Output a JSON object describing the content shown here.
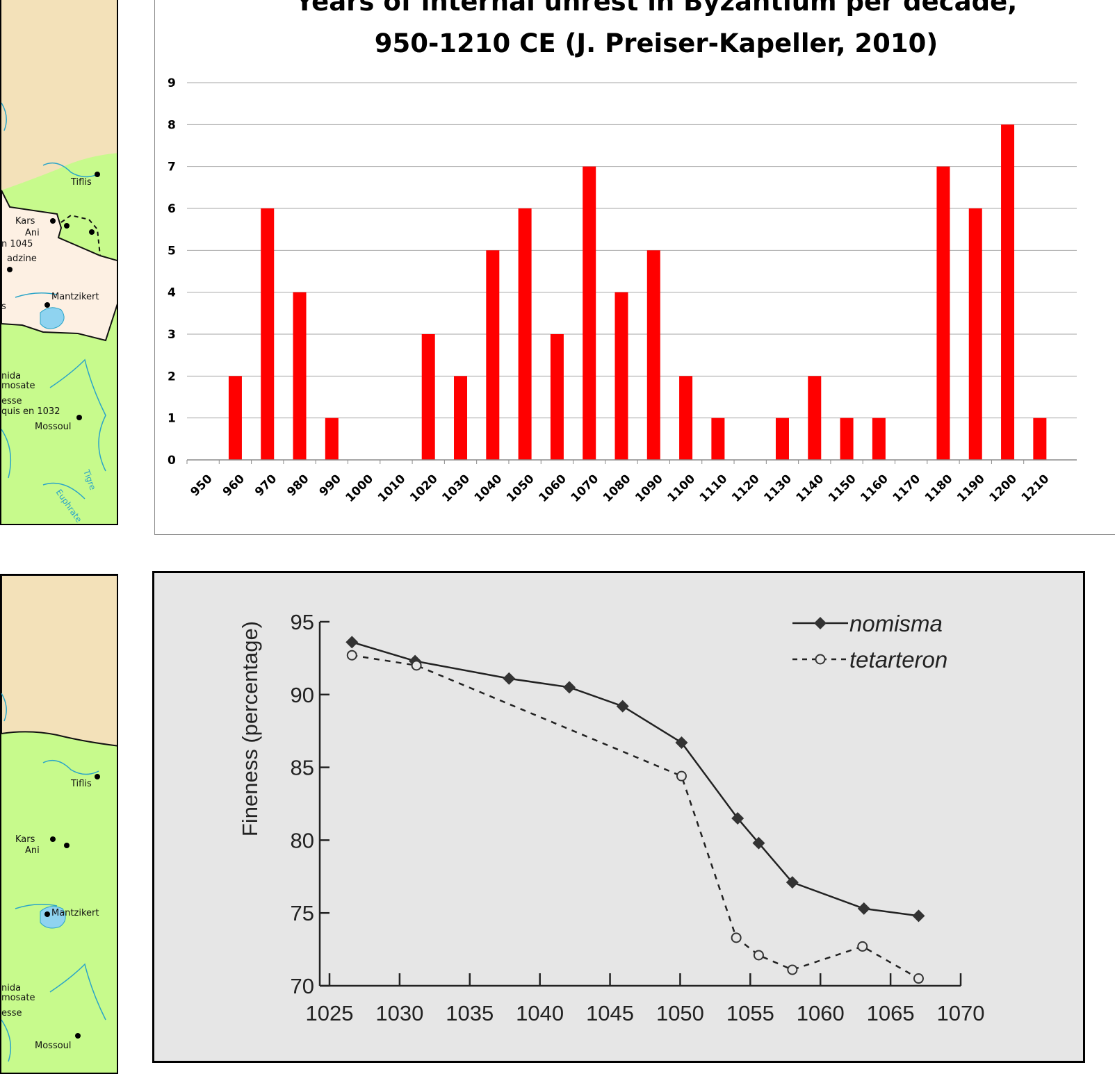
{
  "maps": [
    {
      "labels": {
        "tiflis": "Tiflis",
        "kars": "Kars",
        "ani": "Ani",
        "ani_note": "n 1045",
        "manazkert_partial": "adzine",
        "mantzikert": "Mantzikert",
        "s_partial": "s",
        "nida": "nida",
        "mosate": "mosate",
        "esse": "esse",
        "edessa_note": "quis en 1032",
        "mossoul": "Mossoul",
        "tigre": "Tigre",
        "euphrate": "Euphrate"
      }
    },
    {
      "labels": {
        "tiflis": "Tiflis",
        "kars": "Kars",
        "ani": "Ani",
        "mantzikert": "Mantzikert",
        "nida": "nida",
        "mosate": "mosate",
        "esse": "esse",
        "mossoul": "Mossoul"
      }
    }
  ],
  "colors": {
    "bar": "#ff0000",
    "map_green": "#c7fa8c",
    "map_beige": "#f3e1b9",
    "map_pale": "#fdf0e3",
    "river": "#2aa4c8",
    "chart2_bg": "#e6e6e6"
  },
  "chart_data": [
    {
      "type": "bar",
      "title_lines": [
        "Years of internal unrest in Byzantium per decade,",
        "950-1210 CE (J. Preiser-Kapeller, 2010)"
      ],
      "categories": [
        "950",
        "960",
        "970",
        "980",
        "990",
        "1000",
        "1010",
        "1020",
        "1030",
        "1040",
        "1050",
        "1060",
        "1070",
        "1080",
        "1090",
        "1100",
        "1110",
        "1120",
        "1130",
        "1140",
        "1150",
        "1160",
        "1170",
        "1180",
        "1190",
        "1200",
        "1210"
      ],
      "values": [
        0,
        2,
        6,
        4,
        1,
        0,
        0,
        3,
        2,
        5,
        6,
        3,
        7,
        4,
        5,
        2,
        1,
        0,
        1,
        2,
        1,
        1,
        0,
        7,
        6,
        8,
        1
      ],
      "ylim": [
        0,
        9
      ],
      "yticks": [
        "0",
        "1",
        "2",
        "3",
        "4",
        "5",
        "6",
        "7",
        "8",
        "9"
      ],
      "grid": true,
      "xlabel": "",
      "ylabel": ""
    },
    {
      "type": "line",
      "xlabel": "",
      "ylabel": "Fineness (percentage)",
      "xlim": [
        1025,
        1070
      ],
      "ylim": [
        70,
        95
      ],
      "xticks": [
        "1025",
        "1030",
        "1035",
        "1040",
        "1045",
        "1050",
        "1055",
        "1060",
        "1065",
        "1070"
      ],
      "yticks": [
        "70",
        "75",
        "80",
        "85",
        "90",
        "95"
      ],
      "legend_position": "top-right",
      "series": [
        {
          "name": "nomisma",
          "style": "solid-diamond",
          "x": [
            1026.6,
            1031.1,
            1037.8,
            1042.1,
            1045.9,
            1050.1,
            1054.1,
            1055.6,
            1058.0,
            1063.1,
            1067.0
          ],
          "y": [
            93.6,
            92.3,
            91.1,
            90.5,
            89.2,
            86.7,
            81.5,
            79.8,
            77.1,
            75.3,
            74.8
          ]
        },
        {
          "name": "tetarteron",
          "style": "dashed-circle",
          "x": [
            1026.6,
            1031.2,
            1050.1,
            1054.0,
            1055.6,
            1058.0,
            1063.0,
            1067.0
          ],
          "y": [
            92.7,
            92.0,
            84.4,
            73.3,
            72.1,
            71.1,
            72.7,
            70.5
          ]
        }
      ]
    }
  ]
}
